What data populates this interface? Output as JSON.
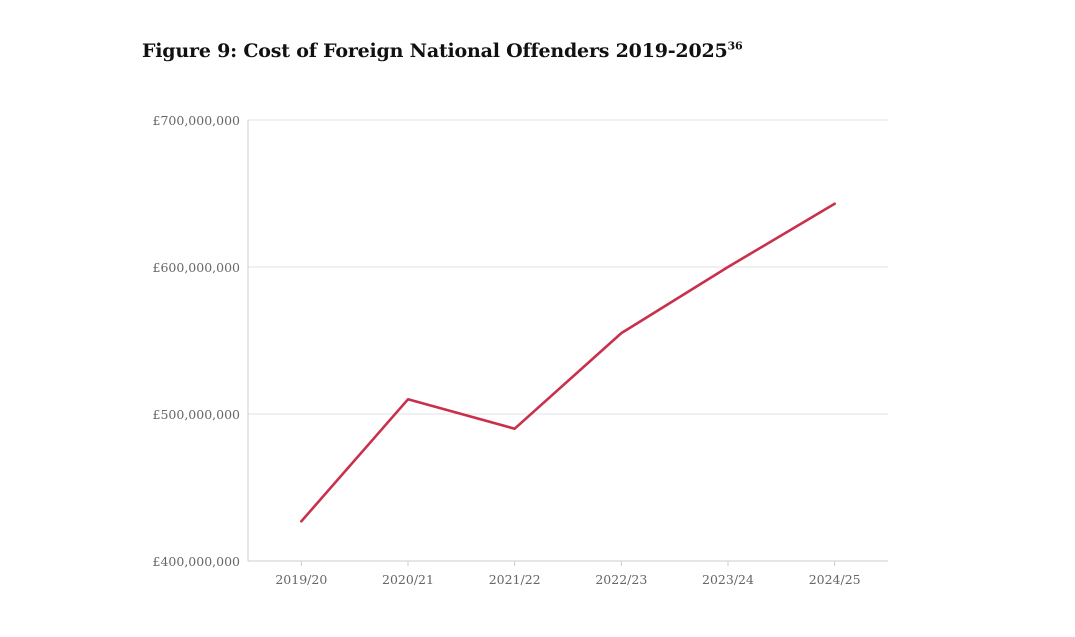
{
  "figure": {
    "title": "Figure 9: Cost of Foreign National Offenders 2019-2025",
    "footnote_ref": "36"
  },
  "chart_data": {
    "type": "line",
    "title": "Figure 9: Cost of Foreign National Offenders 2019-2025",
    "xlabel": "",
    "ylabel": "",
    "categories": [
      "2019/20",
      "2020/21",
      "2021/22",
      "2022/23",
      "2023/24",
      "2024/25"
    ],
    "series": [
      {
        "name": "Cost of Foreign National Offenders",
        "values": [
          427000000,
          510000000,
          490000000,
          555000000,
          600000000,
          643000000
        ],
        "color": "#c8304c"
      }
    ],
    "ylim": [
      400000000,
      700000000
    ],
    "yticks": [
      400000000,
      500000000,
      600000000,
      700000000
    ],
    "ytick_labels": [
      "£400,000,000",
      "£500,000,000",
      "£600,000,000",
      "£700,000,000"
    ],
    "grid": true,
    "legend": "none"
  },
  "colors": {
    "line": "#c8304c",
    "grid": "#e6e6e6",
    "axis": "#cccccc",
    "tick_text": "#666666"
  }
}
